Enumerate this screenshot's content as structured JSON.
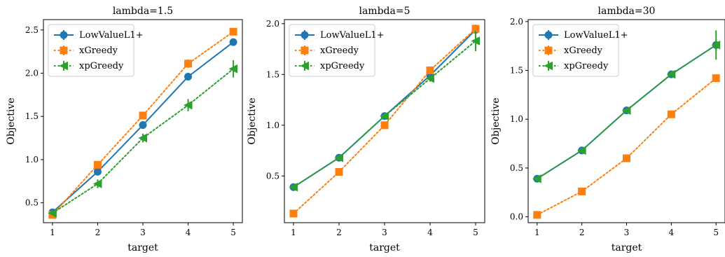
{
  "chart_data": [
    {
      "type": "line",
      "title": "lambda=1.5",
      "xlabel": "target",
      "ylabel": "Objective",
      "x": [
        1,
        2,
        3,
        4,
        5
      ],
      "xlim": [
        0.8,
        5.2
      ],
      "ylim": [
        0.27,
        2.62
      ],
      "yticks": [
        0.5,
        1.0,
        1.5,
        2.0,
        2.5
      ],
      "ytick_labels": [
        "0.5",
        "1.0",
        "1.5",
        "2.0",
        "2.5"
      ],
      "legend_position": "top-left",
      "grid": false,
      "series": [
        {
          "name": "LowValueL1+",
          "values": [
            0.39,
            0.86,
            1.4,
            1.96,
            2.36
          ],
          "err": [
            0.02,
            0.03,
            0.03,
            0.04,
            0.04
          ],
          "color": "#1f77b4",
          "marker": "circle",
          "dash": "solid"
        },
        {
          "name": "xGreedy",
          "values": [
            0.36,
            0.94,
            1.51,
            2.11,
            2.48
          ],
          "err": [
            0.02,
            0.03,
            0.03,
            0.05,
            0.03
          ],
          "color": "#ff7f0e",
          "marker": "square",
          "dash": "dotted"
        },
        {
          "name": "xpGreedy",
          "values": [
            0.38,
            0.72,
            1.25,
            1.63,
            2.05
          ],
          "err": [
            0.02,
            0.05,
            0.05,
            0.07,
            0.1
          ],
          "color": "#2ca02c",
          "marker": "triangle-left",
          "dash": "dotted"
        }
      ]
    },
    {
      "type": "line",
      "title": "lambda=5",
      "xlabel": "target",
      "ylabel": "Objective",
      "x": [
        1,
        2,
        3,
        4,
        5
      ],
      "xlim": [
        0.8,
        5.2
      ],
      "ylim": [
        0.04,
        2.04
      ],
      "yticks": [
        0.5,
        1.0,
        1.5,
        2.0
      ],
      "ytick_labels": [
        "0.5",
        "1.0",
        "1.5",
        "2.0"
      ],
      "legend_position": "top-left",
      "grid": false,
      "series": [
        {
          "name": "LowValueL1+",
          "values": [
            0.39,
            0.68,
            1.09,
            1.49,
            1.94
          ],
          "err": [
            0.02,
            0.02,
            0.02,
            0.02,
            0.05
          ],
          "color": "#1f77b4",
          "marker": "circle",
          "dash": "solid"
        },
        {
          "name": "xGreedy",
          "values": [
            0.13,
            0.54,
            1.0,
            1.54,
            1.95
          ],
          "err": [
            0.01,
            0.02,
            0.02,
            0.03,
            0.03
          ],
          "color": "#ff7f0e",
          "marker": "square",
          "dash": "dotted"
        },
        {
          "name": "xpGreedy",
          "values": [
            0.39,
            0.68,
            1.09,
            1.46,
            1.83
          ],
          "err": [
            0.02,
            0.02,
            0.02,
            0.03,
            0.1
          ],
          "color": "#2ca02c",
          "marker": "triangle-left",
          "dash": "dotted"
        }
      ]
    },
    {
      "type": "line",
      "title": "lambda=30",
      "xlabel": "target",
      "ylabel": "Objective",
      "x": [
        1,
        2,
        3,
        4,
        5
      ],
      "xlim": [
        0.8,
        5.2
      ],
      "ylim": [
        -0.06,
        2.02
      ],
      "yticks": [
        0.0,
        0.5,
        1.0,
        1.5,
        2.0
      ],
      "ytick_labels": [
        "0.0",
        "0.5",
        "1.0",
        "1.5",
        "2.0"
      ],
      "legend_position": "top-left",
      "grid": false,
      "series": [
        {
          "name": "LowValueL1+",
          "values": [
            0.39,
            0.68,
            1.09,
            1.46,
            1.76
          ],
          "err": [
            0.02,
            0.02,
            0.02,
            0.02,
            0.06
          ],
          "color": "#1f77b4",
          "marker": "circle",
          "dash": "solid"
        },
        {
          "name": "xGreedy",
          "values": [
            0.02,
            0.26,
            0.6,
            1.05,
            1.42
          ],
          "err": [
            0.01,
            0.01,
            0.02,
            0.02,
            0.03
          ],
          "color": "#ff7f0e",
          "marker": "square",
          "dash": "dotted"
        },
        {
          "name": "xpGreedy",
          "values": [
            0.39,
            0.68,
            1.09,
            1.46,
            1.76
          ],
          "err": [
            0.02,
            0.02,
            0.02,
            0.03,
            0.15
          ],
          "color": "#2ca02c",
          "marker": "triangle-left",
          "dash": "dotted"
        }
      ]
    }
  ]
}
